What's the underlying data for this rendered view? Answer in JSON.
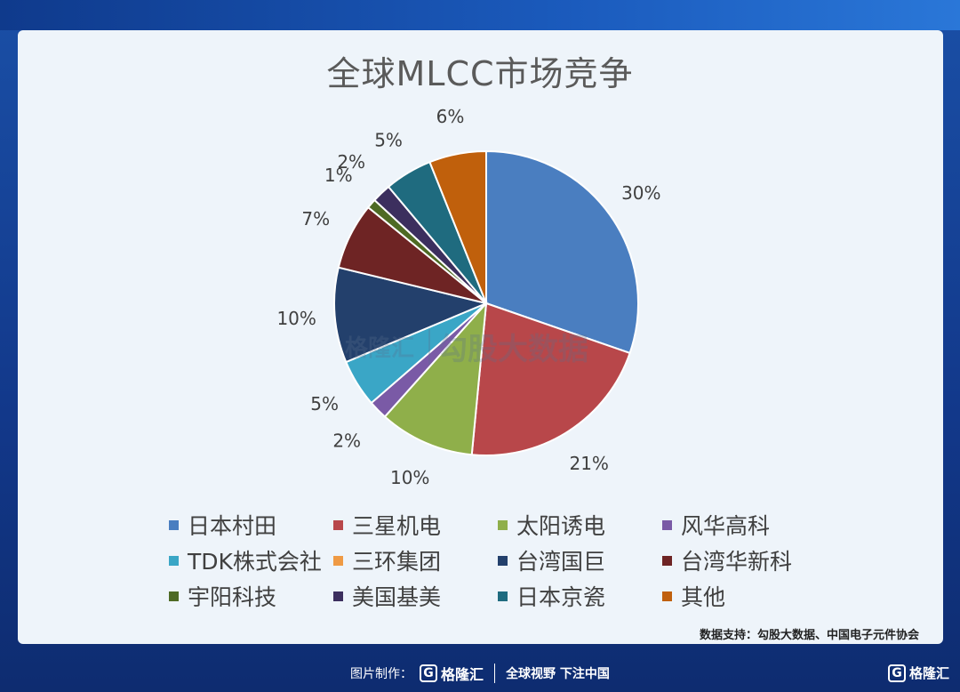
{
  "chart_data": {
    "type": "pie",
    "title": "全球MLCC市场竞争",
    "slices": [
      {
        "label": "日本村田",
        "value": 30,
        "display": "30%",
        "color": "#4a7ec0"
      },
      {
        "label": "三星机电",
        "value": 21,
        "display": "21%",
        "color": "#b8474a"
      },
      {
        "label": "太阳诱电",
        "value": 10,
        "display": "10%",
        "color": "#8faf4a"
      },
      {
        "label": "风华高科",
        "value": 2,
        "display": "2%",
        "color": "#7a5aa6"
      },
      {
        "label": "TDK株式会社",
        "value": 5,
        "display": "5%",
        "color": "#3aa6c6"
      },
      {
        "label": "三环集团",
        "value": 0,
        "display": "",
        "color": "#ef9a44"
      },
      {
        "label": "台湾国巨",
        "value": 10,
        "display": "10%",
        "color": "#23406c"
      },
      {
        "label": "台湾华新科",
        "value": 7,
        "display": "7%",
        "color": "#6e2424"
      },
      {
        "label": "宇阳科技",
        "value": 1,
        "display": "1%",
        "color": "#4e6a24"
      },
      {
        "label": "美国基美",
        "value": 2,
        "display": "2%",
        "color": "#3c2f5e"
      },
      {
        "label": "日本京瓷",
        "value": 5,
        "display": "5%",
        "color": "#1f6b7f"
      },
      {
        "label": "其他",
        "value": 6,
        "display": "6%",
        "color": "#c0600c"
      }
    ],
    "legend_position": "bottom"
  },
  "source": "数据支持：勾股大数据、中国电子元件协会",
  "watermark": {
    "brand": "格隆汇",
    "text": "勾股大数据"
  },
  "footer": {
    "label": "图片制作：",
    "brand": "格隆汇",
    "slogan": "全球视野 下注中国"
  },
  "corner_brand": "格隆汇"
}
